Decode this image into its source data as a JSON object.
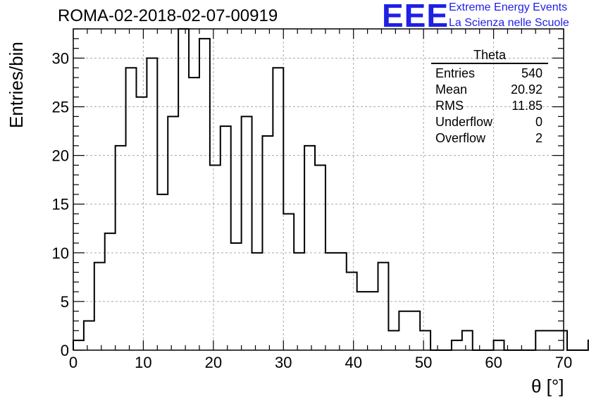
{
  "header": {
    "title": "ROMA-02-2018-02-07-00919"
  },
  "logo": {
    "mark": "EEE",
    "line1": "Extreme Energy Events",
    "line2": "La Scienza nelle Scuole",
    "color": "#1f1fe6"
  },
  "stats_box": {
    "title": "Theta",
    "rows": [
      {
        "label": "Entries",
        "value": "540"
      },
      {
        "label": "Mean",
        "value": "20.92"
      },
      {
        "label": "RMS",
        "value": "11.85"
      },
      {
        "label": "Underflow",
        "value": "0"
      },
      {
        "label": "Overflow",
        "value": "2"
      }
    ]
  },
  "chart_data": {
    "type": "bar",
    "style": "step-histogram",
    "xlabel": "θ [°]",
    "ylabel": "Entries/bin",
    "xlim": [
      0,
      70
    ],
    "ylim": [
      0,
      33
    ],
    "x_ticks": [
      0,
      10,
      20,
      30,
      40,
      50,
      60,
      70
    ],
    "y_ticks": [
      0,
      5,
      10,
      15,
      20,
      25,
      30
    ],
    "grid": true,
    "bin_width": 1.5,
    "bin_edges_start": 0,
    "values": [
      1,
      3,
      9,
      12,
      21,
      29,
      26,
      30,
      16,
      24,
      33,
      28,
      32,
      19,
      23,
      11,
      24,
      10,
      22,
      29,
      14,
      10,
      21,
      19,
      10,
      10,
      8,
      6,
      6,
      9,
      2,
      4,
      4,
      2,
      0,
      0,
      1,
      2,
      0,
      0,
      1,
      0,
      0,
      0,
      2,
      2,
      2,
      0,
      0,
      1
    ]
  }
}
